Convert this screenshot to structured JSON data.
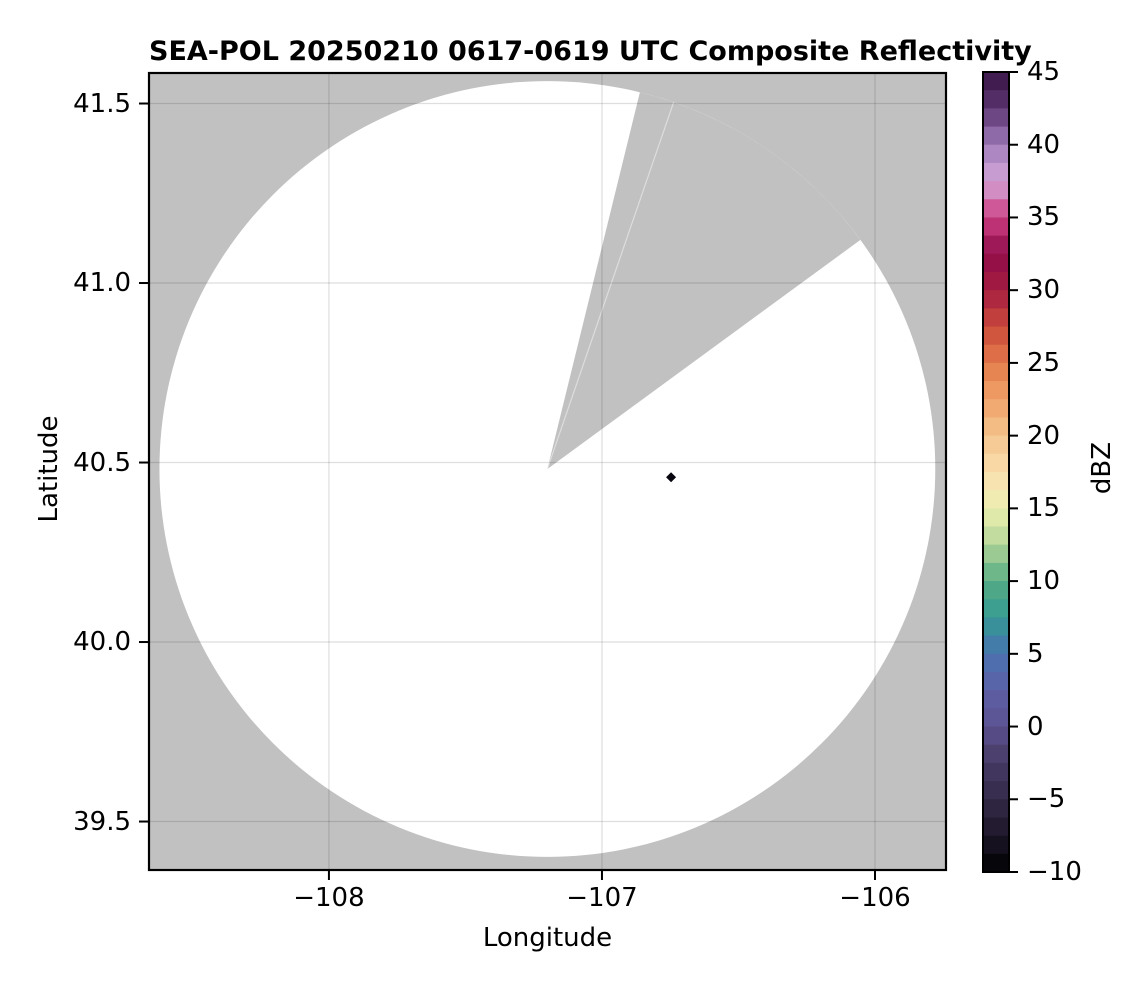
{
  "chart_data": {
    "type": "heatmap",
    "subtype": "radar-ppi-composite-reflectivity",
    "title": "SEA-POL 20250210 0617-0619 UTC Composite Reflectivity",
    "xlabel": "Longitude",
    "ylabel": "Latitude",
    "grid": true,
    "xlim": [
      -108.659,
      -105.74
    ],
    "ylim": [
      39.365,
      41.585
    ],
    "x_ticks": [
      {
        "value": -108,
        "label": "−108"
      },
      {
        "value": -107,
        "label": "−107"
      },
      {
        "value": -106,
        "label": "−106"
      }
    ],
    "y_ticks": [
      {
        "value": 41.5,
        "label": "41.5"
      },
      {
        "value": 41.0,
        "label": "41.0"
      },
      {
        "value": 40.5,
        "label": "40.5"
      },
      {
        "value": 40.0,
        "label": "40.0"
      },
      {
        "value": 39.5,
        "label": "39.5"
      }
    ],
    "radar": {
      "name": "SEA-POL",
      "center_lon": -107.2,
      "center_lat": 40.482,
      "range_lat_deg": 1.0805,
      "coverage_color": "#ffffff",
      "nodata_color": "#c1c1c1"
    },
    "blocked_sector": {
      "azimuth_start_deg": 13.8,
      "azimuth_end_deg": 53.8,
      "inner_seam_azimuth_deg": 19.0
    },
    "echoes": [
      {
        "lon": -106.747,
        "lat": 40.459,
        "marker": "diamond",
        "color": "#08060f"
      }
    ],
    "gridline_color": "rgba(0,0,0,0.13)",
    "colorbar": {
      "label": "dBZ",
      "min": -10,
      "max": 45,
      "band_step": 1.25,
      "ticks": [
        {
          "value": 45,
          "label": "45"
        },
        {
          "value": 40,
          "label": "40"
        },
        {
          "value": 35,
          "label": "35"
        },
        {
          "value": 30,
          "label": "30"
        },
        {
          "value": 25,
          "label": "25"
        },
        {
          "value": 20,
          "label": "20"
        },
        {
          "value": 15,
          "label": "15"
        },
        {
          "value": 10,
          "label": "10"
        },
        {
          "value": 5,
          "label": "5"
        },
        {
          "value": 0,
          "label": "0"
        },
        {
          "value": -5,
          "label": "−5"
        },
        {
          "value": -10,
          "label": "−10"
        }
      ],
      "stops": [
        {
          "value": 45.0,
          "color": "#361345"
        },
        {
          "value": 42.5,
          "color": "#5d3571"
        },
        {
          "value": 40.0,
          "color": "#9e7cba"
        },
        {
          "value": 37.5,
          "color": "#d4a8d8"
        },
        {
          "value": 35.0,
          "color": "#cd3e83"
        },
        {
          "value": 32.5,
          "color": "#8e0c49"
        },
        {
          "value": 30.0,
          "color": "#a41d41"
        },
        {
          "value": 27.5,
          "color": "#ca4a3a"
        },
        {
          "value": 25.0,
          "color": "#e37a4b"
        },
        {
          "value": 22.5,
          "color": "#f0a368"
        },
        {
          "value": 20.0,
          "color": "#f5c48e"
        },
        {
          "value": 17.5,
          "color": "#fadfae"
        },
        {
          "value": 15.0,
          "color": "#ecefb0"
        },
        {
          "value": 12.5,
          "color": "#b2d598"
        },
        {
          "value": 10.0,
          "color": "#57ad84"
        },
        {
          "value": 7.5,
          "color": "#339a93"
        },
        {
          "value": 5.0,
          "color": "#4a72b0"
        },
        {
          "value": 2.5,
          "color": "#5e60a6"
        },
        {
          "value": 0.0,
          "color": "#5b5190"
        },
        {
          "value": -2.5,
          "color": "#453a63"
        },
        {
          "value": -5.0,
          "color": "#332a49"
        },
        {
          "value": -7.5,
          "color": "#1d1729"
        },
        {
          "value": -10.0,
          "color": "#000000"
        }
      ]
    }
  }
}
